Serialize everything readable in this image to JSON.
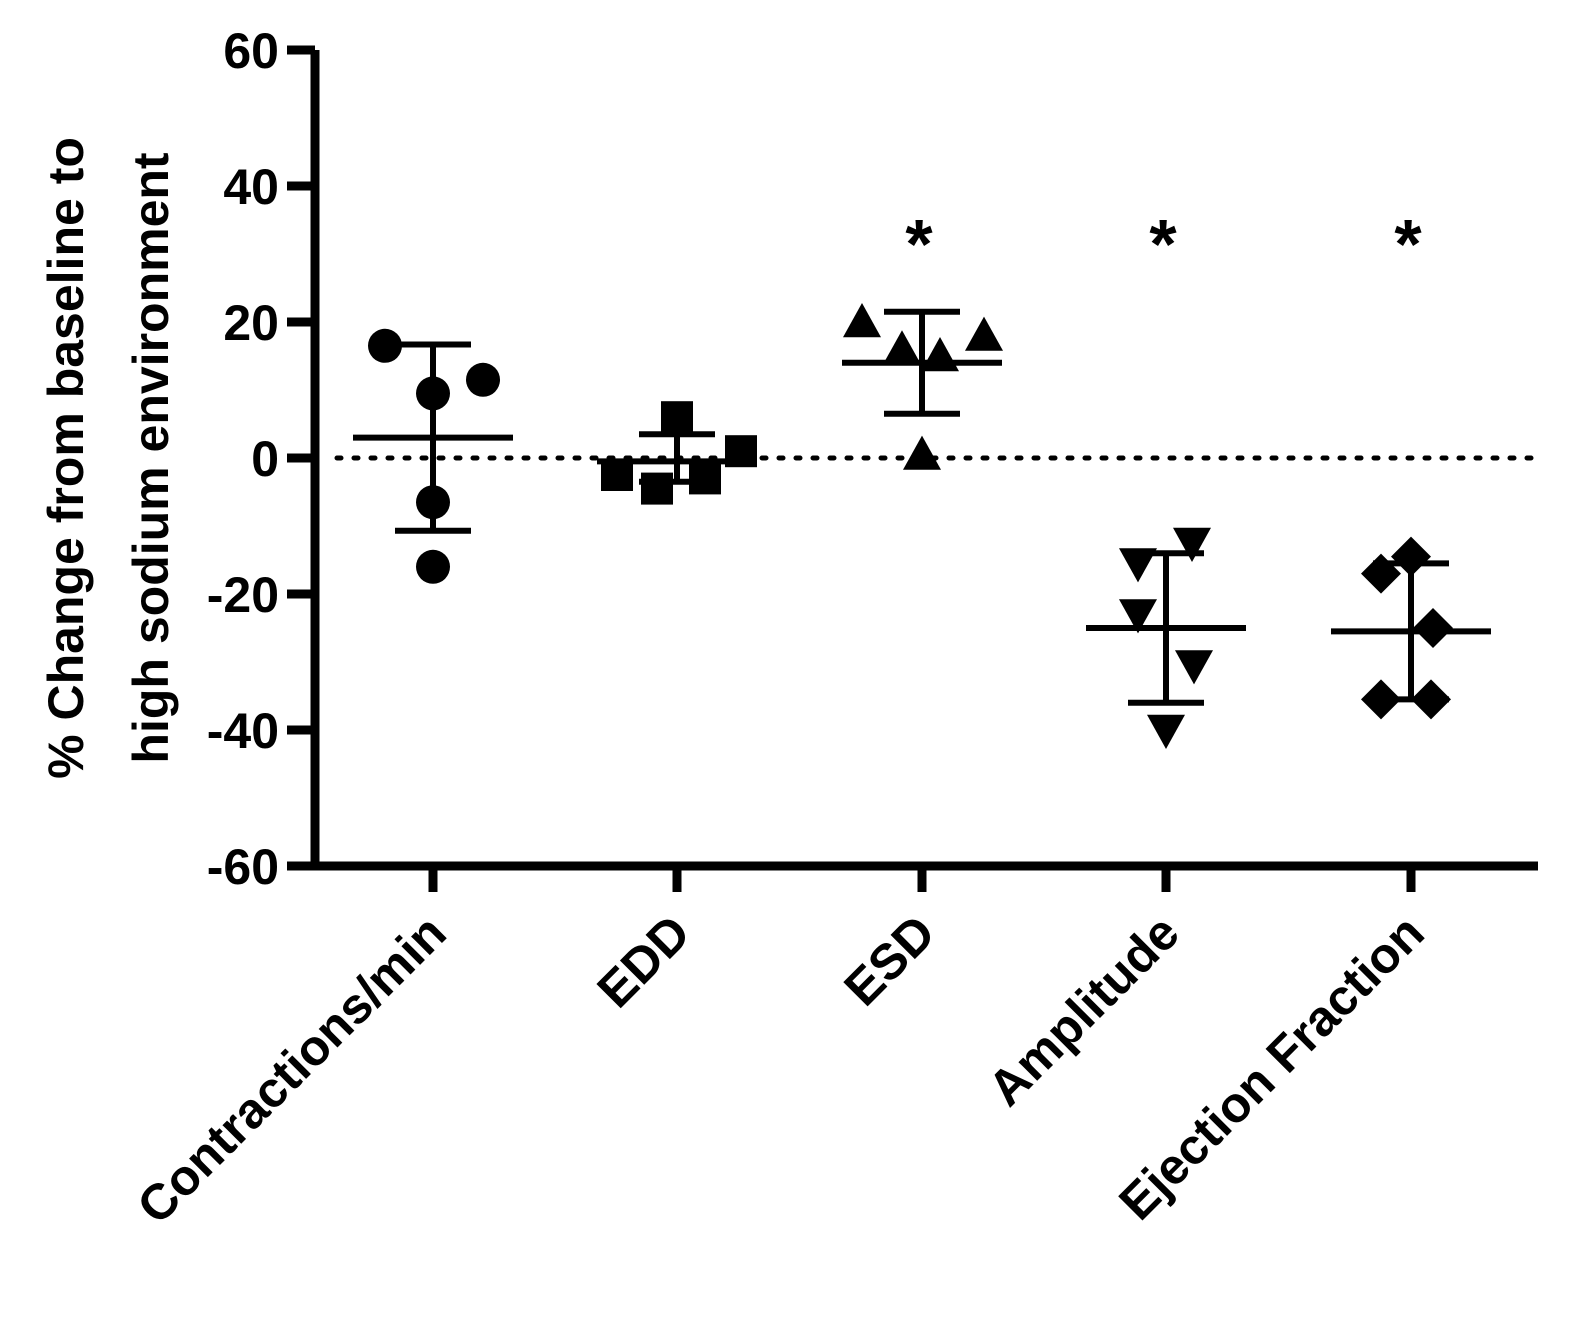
{
  "chart_data": {
    "type": "scatter",
    "title": "",
    "ylabel_lines": [
      "% Change from baseline to",
      "high sodium environment"
    ],
    "xlabel": "",
    "ylim": [
      -60,
      60
    ],
    "yticks": [
      60,
      40,
      20,
      0,
      -20,
      -40,
      -60
    ],
    "ytick_labels": [
      "60",
      "40",
      "20",
      "0",
      "-20",
      "-40",
      "-60"
    ],
    "reference_line_y": 0,
    "colors": {
      "ink": "#000000",
      "background": "#ffffff"
    },
    "categories": [
      "Contractions/min",
      "EDD",
      "ESD",
      "Amplitude",
      "Ejection Fraction"
    ],
    "series": [
      {
        "name": "Contractions/min",
        "marker": "circle",
        "points": [
          16.5,
          9.5,
          11.5,
          -6.5,
          -16
        ],
        "mean": 3,
        "sd_upper": 16.7,
        "sd_lower": -10.7,
        "significance": ""
      },
      {
        "name": "EDD",
        "marker": "square",
        "points": [
          6,
          1,
          -2.5,
          -4.5,
          -3
        ],
        "mean": -0.5,
        "sd_upper": 3.5,
        "sd_lower": -3.5,
        "significance": ""
      },
      {
        "name": "ESD",
        "marker": "triangle-up",
        "points": [
          20,
          16,
          15,
          18,
          0.5
        ],
        "mean": 14,
        "sd_upper": 21.5,
        "sd_lower": 6.5,
        "significance": "*"
      },
      {
        "name": "Amplitude",
        "marker": "triangle-down",
        "points": [
          -15.5,
          -12.5,
          -23,
          -30.5,
          -40
        ],
        "mean": -25,
        "sd_upper": -14,
        "sd_lower": -36,
        "significance": "*"
      },
      {
        "name": "Ejection Fraction",
        "marker": "diamond",
        "points": [
          -14.5,
          -17,
          -25,
          -35.5,
          -35.5
        ],
        "mean": -25.5,
        "sd_upper": -15.5,
        "sd_lower": -35.5,
        "significance": "*"
      }
    ]
  }
}
